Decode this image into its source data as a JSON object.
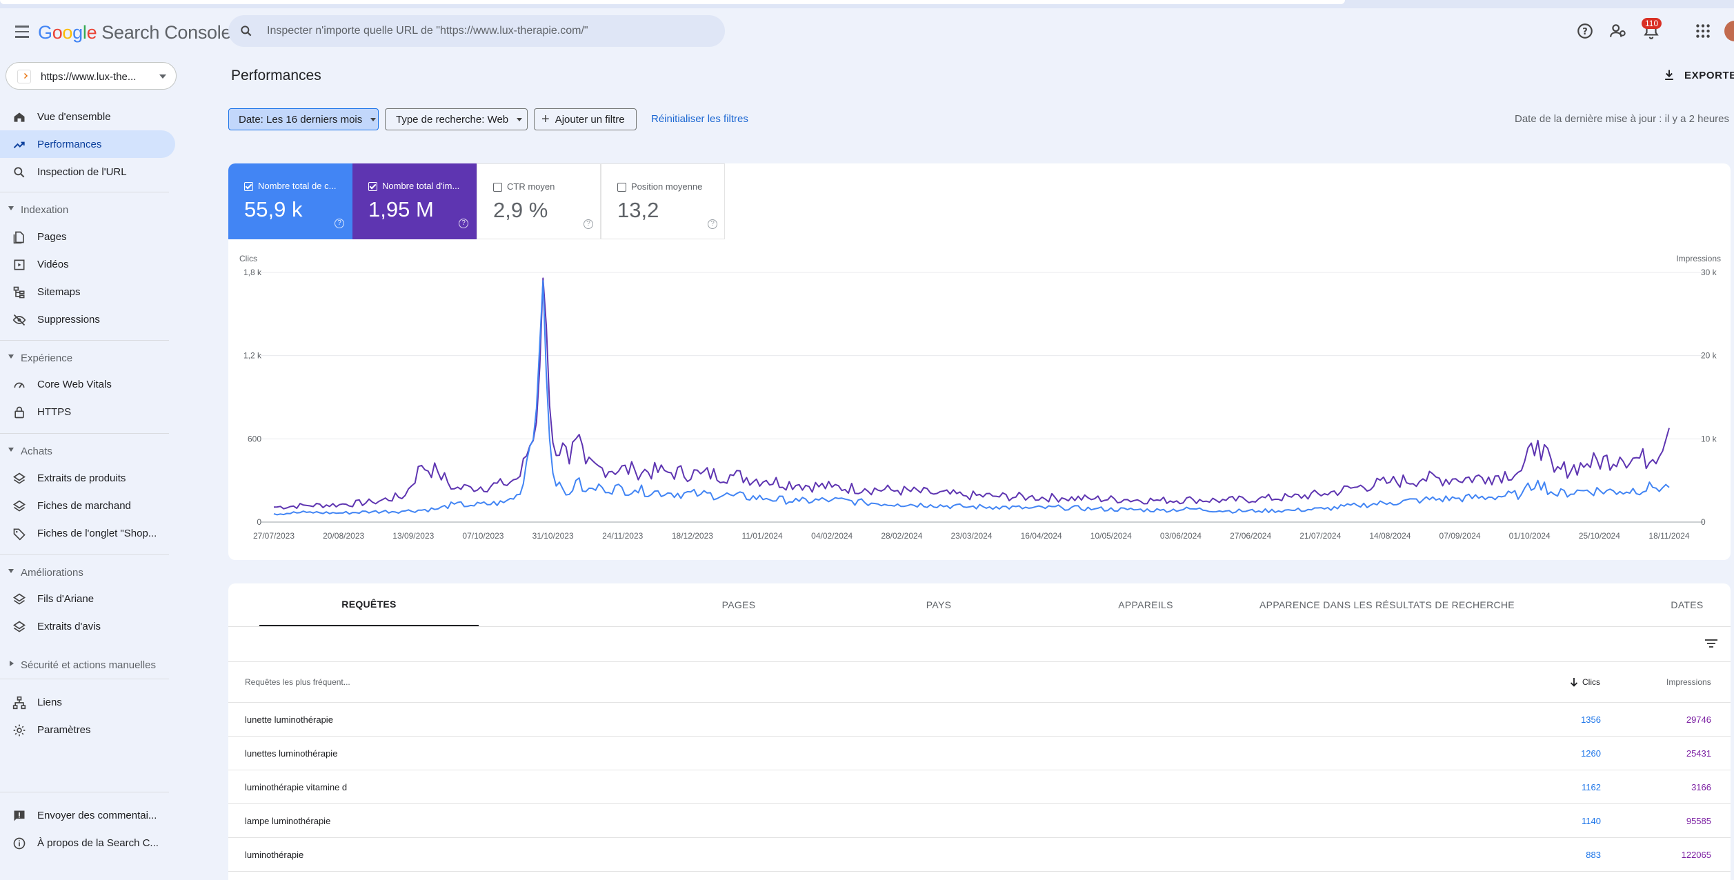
{
  "header": {
    "logo": {
      "g": "G",
      "o1": "o",
      "o2": "o",
      "g2": "g",
      "l": "l",
      "e": "e",
      "product": "Search Console"
    },
    "search_placeholder": "Inspecter n'importe quelle URL de \"https://www.lux-therapie.com/\"",
    "notifications_count": "110"
  },
  "sidebar": {
    "property": "https://www.lux-the...",
    "top_items": [
      {
        "label": "Vue d'ensemble",
        "icon": "home-icon"
      },
      {
        "label": "Performances",
        "icon": "trending-up-icon",
        "active": true
      },
      {
        "label": "Inspection de l'URL",
        "icon": "search-icon"
      }
    ],
    "sections": [
      {
        "title": "Indexation",
        "items": [
          {
            "label": "Pages",
            "icon": "pages-icon"
          },
          {
            "label": "Vidéos",
            "icon": "video-icon"
          },
          {
            "label": "Sitemaps",
            "icon": "sitemap-icon"
          },
          {
            "label": "Suppressions",
            "icon": "eye-off-icon"
          }
        ]
      },
      {
        "title": "Expérience",
        "items": [
          {
            "label": "Core Web Vitals",
            "icon": "speed-icon"
          },
          {
            "label": "HTTPS",
            "icon": "lock-icon"
          }
        ]
      },
      {
        "title": "Achats",
        "items": [
          {
            "label": "Extraits de produits",
            "icon": "layers-icon"
          },
          {
            "label": "Fiches de marchand",
            "icon": "layers-icon"
          },
          {
            "label": "Fiches de l'onglet \"Shop...",
            "icon": "tag-icon"
          }
        ]
      },
      {
        "title": "Améliorations",
        "items": [
          {
            "label": "Fils d'Ariane",
            "icon": "layers-icon"
          },
          {
            "label": "Extraits d'avis",
            "icon": "layers-icon"
          }
        ]
      },
      {
        "title": "Sécurité et actions manuelles",
        "items": []
      }
    ],
    "bottom_items": [
      {
        "label": "Liens",
        "icon": "links-icon"
      },
      {
        "label": "Paramètres",
        "icon": "gear-icon"
      }
    ],
    "footer_items": [
      {
        "label": "Envoyer des commentai...",
        "icon": "feedback-icon"
      },
      {
        "label": "À propos de la Search C...",
        "icon": "info-icon"
      }
    ]
  },
  "main": {
    "title": "Performances",
    "export_label": "EXPORTER",
    "filters": {
      "date": "Date: Les 16 derniers mois",
      "type": "Type de recherche: Web",
      "add": "Ajouter un filtre",
      "reset": "Réinitialiser les filtres"
    },
    "last_update": "Date de la dernière mise à jour : il y a 2 heures",
    "metrics": [
      {
        "label": "Nombre total de c...",
        "value": "55,9 k",
        "checked": true,
        "color": "#4285f4"
      },
      {
        "label": "Nombre total d'im...",
        "value": "1,95 M",
        "checked": true,
        "color": "#5e35b1"
      },
      {
        "label": "CTR moyen",
        "value": "2,9 %",
        "checked": false
      },
      {
        "label": "Position moyenne",
        "value": "13,2",
        "checked": false
      }
    ]
  },
  "chart_data": {
    "type": "line",
    "ylabel_left": "Clics",
    "ylabel_right": "Impressions",
    "left_ticks": [
      "0",
      "600",
      "1,2 k",
      "1,8 k"
    ],
    "right_ticks": [
      "0",
      "10 k",
      "20 k",
      "30 k"
    ],
    "ylim_left": [
      0,
      1800
    ],
    "ylim_right": [
      0,
      30000
    ],
    "x_ticks": [
      "27/07/2023",
      "20/08/2023",
      "13/09/2023",
      "07/10/2023",
      "31/10/2023",
      "24/11/2023",
      "18/12/2023",
      "11/01/2024",
      "04/02/2024",
      "28/02/2024",
      "23/03/2024",
      "16/04/2024",
      "10/05/2024",
      "03/06/2024",
      "27/06/2024",
      "21/07/2024",
      "14/08/2024",
      "07/09/2024",
      "01/10/2024",
      "25/10/2024",
      "18/11/2024"
    ],
    "grid": true,
    "series": [
      {
        "name": "Clics",
        "color": "#4285f4",
        "axis": "left",
        "points": [
          [
            0,
            60
          ],
          [
            10,
            70
          ],
          [
            20,
            65
          ],
          [
            30,
            75
          ],
          [
            40,
            80
          ],
          [
            50,
            95
          ],
          [
            55,
            130
          ],
          [
            60,
            120
          ],
          [
            70,
            140
          ],
          [
            75,
            200
          ],
          [
            80,
            820
          ],
          [
            82,
            1740
          ],
          [
            84,
            600
          ],
          [
            86,
            260
          ],
          [
            90,
            200
          ],
          [
            92,
            300
          ],
          [
            95,
            220
          ],
          [
            100,
            250
          ],
          [
            110,
            230
          ],
          [
            120,
            210
          ],
          [
            130,
            200
          ],
          [
            140,
            190
          ],
          [
            150,
            170
          ],
          [
            160,
            150
          ],
          [
            170,
            160
          ],
          [
            180,
            140
          ],
          [
            190,
            130
          ],
          [
            200,
            125
          ],
          [
            210,
            110
          ],
          [
            220,
            110
          ],
          [
            230,
            100
          ],
          [
            240,
            105
          ],
          [
            250,
            95
          ],
          [
            260,
            90
          ],
          [
            270,
            85
          ],
          [
            280,
            95
          ],
          [
            290,
            80
          ],
          [
            300,
            80
          ],
          [
            310,
            85
          ],
          [
            320,
            95
          ],
          [
            330,
            120
          ],
          [
            340,
            140
          ],
          [
            350,
            160
          ],
          [
            360,
            170
          ],
          [
            370,
            180
          ],
          [
            380,
            200
          ],
          [
            385,
            300
          ],
          [
            390,
            200
          ],
          [
            400,
            230
          ],
          [
            410,
            220
          ],
          [
            420,
            250
          ],
          [
            425,
            250
          ]
        ]
      },
      {
        "name": "Impressions",
        "color": "#5e35b1",
        "axis": "right",
        "points": [
          [
            0,
            1800
          ],
          [
            10,
            2000
          ],
          [
            20,
            2100
          ],
          [
            30,
            2400
          ],
          [
            40,
            3200
          ],
          [
            45,
            6800
          ],
          [
            50,
            6000
          ],
          [
            55,
            4000
          ],
          [
            60,
            4200
          ],
          [
            70,
            4500
          ],
          [
            75,
            5500
          ],
          [
            80,
            12000
          ],
          [
            82,
            29300
          ],
          [
            84,
            14000
          ],
          [
            86,
            8000
          ],
          [
            88,
            9500
          ],
          [
            90,
            7000
          ],
          [
            92,
            10000
          ],
          [
            95,
            7000
          ],
          [
            100,
            6500
          ],
          [
            110,
            6200
          ],
          [
            120,
            6000
          ],
          [
            130,
            5800
          ],
          [
            140,
            5600
          ],
          [
            150,
            5000
          ],
          [
            160,
            4500
          ],
          [
            170,
            4200
          ],
          [
            180,
            4000
          ],
          [
            190,
            3800
          ],
          [
            200,
            3500
          ],
          [
            210,
            3200
          ],
          [
            220,
            3100
          ],
          [
            230,
            3000
          ],
          [
            240,
            2900
          ],
          [
            250,
            2800
          ],
          [
            260,
            2700
          ],
          [
            270,
            2600
          ],
          [
            280,
            2700
          ],
          [
            290,
            2600
          ],
          [
            300,
            2800
          ],
          [
            310,
            3000
          ],
          [
            320,
            3400
          ],
          [
            330,
            4200
          ],
          [
            340,
            4800
          ],
          [
            350,
            5200
          ],
          [
            360,
            5200
          ],
          [
            370,
            5400
          ],
          [
            380,
            6200
          ],
          [
            385,
            9800
          ],
          [
            390,
            6000
          ],
          [
            400,
            7000
          ],
          [
            410,
            7800
          ],
          [
            420,
            7500
          ],
          [
            425,
            11300
          ]
        ]
      }
    ]
  },
  "table": {
    "tabs": [
      {
        "label": "REQUÊTES",
        "active": true
      },
      {
        "label": "PAGES"
      },
      {
        "label": "PAYS"
      },
      {
        "label": "APPAREILS"
      },
      {
        "label": "APPARENCE DANS LES RÉSULTATS DE RECHERCHE"
      },
      {
        "label": "DATES"
      }
    ],
    "headers": {
      "query": "Requêtes les plus fréquent...",
      "clicks": "Clics",
      "impressions": "Impressions"
    },
    "rows": [
      {
        "query": "lunette luminothérapie",
        "clicks": "1356",
        "impressions": "29746"
      },
      {
        "query": "lunettes luminothérapie",
        "clicks": "1260",
        "impressions": "25431"
      },
      {
        "query": "luminothérapie vitamine d",
        "clicks": "1162",
        "impressions": "3166"
      },
      {
        "query": "lampe luminothérapie",
        "clicks": "1140",
        "impressions": "95585"
      },
      {
        "query": "luminothérapie",
        "clicks": "883",
        "impressions": "122065"
      }
    ]
  }
}
